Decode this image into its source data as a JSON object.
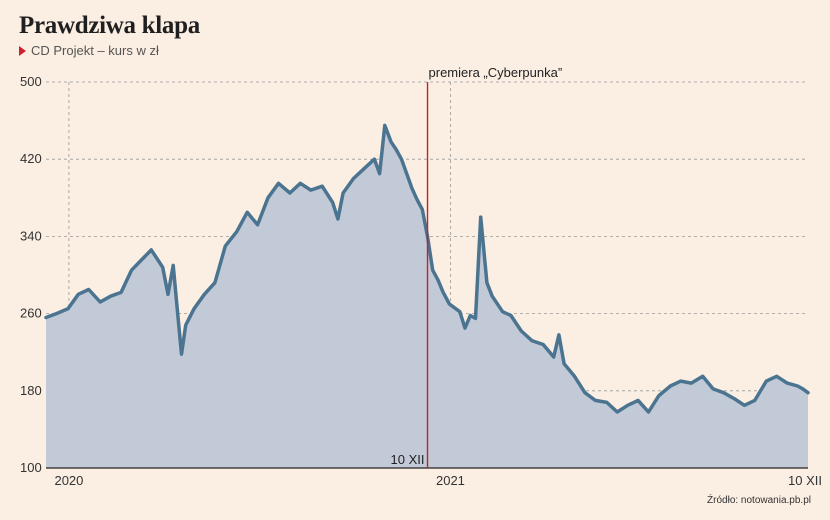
{
  "header": {
    "title": "Prawdziwa klapa",
    "subtitle": "CD Projekt – kurs w zł"
  },
  "source": "Źródło: notowania.pb.pl",
  "colors": {
    "background": "#fbeee3",
    "line": "#4b7490",
    "area": "#c2c9d7",
    "marker": "#c8202a",
    "marker_icon": "#d0202a"
  },
  "chart_data": {
    "type": "area",
    "ylim": [
      100,
      500
    ],
    "yticks": [
      100,
      180,
      260,
      340,
      420,
      500
    ],
    "x_date_range": [
      "2019-12-10",
      "2021-12-10"
    ],
    "xtick_labels": [
      {
        "date": "2020-01-01",
        "label": "2020"
      },
      {
        "date": "2021-01-01",
        "label": "2021"
      },
      {
        "date": "2021-12-10",
        "label": "10 XII"
      }
    ],
    "grid": "dashed",
    "annotation": {
      "date": "2020-12-10",
      "label_top": "premiera „Cyberpunka”",
      "label_bottom": "10 XII"
    },
    "series": [
      {
        "points": [
          [
            "2019-12-10",
            256
          ],
          [
            "2019-12-20",
            260
          ],
          [
            "2019-12-31",
            265
          ],
          [
            "2020-01-10",
            280
          ],
          [
            "2020-01-20",
            285
          ],
          [
            "2020-01-31",
            272
          ],
          [
            "2020-02-10",
            278
          ],
          [
            "2020-02-20",
            282
          ],
          [
            "2020-03-01",
            305
          ],
          [
            "2020-03-10",
            315
          ],
          [
            "2020-03-20",
            326
          ],
          [
            "2020-03-31",
            308
          ],
          [
            "2020-04-05",
            280
          ],
          [
            "2020-04-10",
            310
          ],
          [
            "2020-04-15",
            252
          ],
          [
            "2020-04-18",
            218
          ],
          [
            "2020-04-22",
            248
          ],
          [
            "2020-04-30",
            265
          ],
          [
            "2020-05-10",
            280
          ],
          [
            "2020-05-20",
            292
          ],
          [
            "2020-05-30",
            330
          ],
          [
            "2020-06-10",
            345
          ],
          [
            "2020-06-20",
            365
          ],
          [
            "2020-06-30",
            352
          ],
          [
            "2020-07-10",
            380
          ],
          [
            "2020-07-20",
            395
          ],
          [
            "2020-07-31",
            385
          ],
          [
            "2020-08-10",
            395
          ],
          [
            "2020-08-20",
            388
          ],
          [
            "2020-08-31",
            392
          ],
          [
            "2020-09-10",
            375
          ],
          [
            "2020-09-15",
            358
          ],
          [
            "2020-09-20",
            385
          ],
          [
            "2020-09-30",
            400
          ],
          [
            "2020-10-10",
            410
          ],
          [
            "2020-10-20",
            420
          ],
          [
            "2020-10-25",
            405
          ],
          [
            "2020-10-30",
            455
          ],
          [
            "2020-11-05",
            438
          ],
          [
            "2020-11-10",
            430
          ],
          [
            "2020-11-15",
            420
          ],
          [
            "2020-11-20",
            405
          ],
          [
            "2020-11-25",
            390
          ],
          [
            "2020-11-30",
            378
          ],
          [
            "2020-12-05",
            368
          ],
          [
            "2020-12-10",
            340
          ],
          [
            "2020-12-15",
            305
          ],
          [
            "2020-12-20",
            295
          ],
          [
            "2020-12-25",
            282
          ],
          [
            "2020-12-31",
            270
          ],
          [
            "2021-01-10",
            262
          ],
          [
            "2021-01-15",
            245
          ],
          [
            "2021-01-20",
            258
          ],
          [
            "2021-01-25",
            255
          ],
          [
            "2021-01-30",
            360
          ],
          [
            "2021-02-05",
            292
          ],
          [
            "2021-02-10",
            278
          ],
          [
            "2021-02-20",
            262
          ],
          [
            "2021-02-28",
            258
          ],
          [
            "2021-03-10",
            242
          ],
          [
            "2021-03-20",
            232
          ],
          [
            "2021-03-31",
            228
          ],
          [
            "2021-04-10",
            215
          ],
          [
            "2021-04-15",
            238
          ],
          [
            "2021-04-20",
            208
          ],
          [
            "2021-04-30",
            195
          ],
          [
            "2021-05-10",
            178
          ],
          [
            "2021-05-20",
            170
          ],
          [
            "2021-05-31",
            168
          ],
          [
            "2021-06-10",
            158
          ],
          [
            "2021-06-20",
            165
          ],
          [
            "2021-06-30",
            170
          ],
          [
            "2021-07-10",
            158
          ],
          [
            "2021-07-20",
            175
          ],
          [
            "2021-07-31",
            185
          ],
          [
            "2021-08-10",
            190
          ],
          [
            "2021-08-20",
            188
          ],
          [
            "2021-08-31",
            195
          ],
          [
            "2021-09-10",
            182
          ],
          [
            "2021-09-20",
            178
          ],
          [
            "2021-09-30",
            172
          ],
          [
            "2021-10-10",
            165
          ],
          [
            "2021-10-20",
            170
          ],
          [
            "2021-10-31",
            190
          ],
          [
            "2021-11-10",
            195
          ],
          [
            "2021-11-20",
            188
          ],
          [
            "2021-11-30",
            185
          ],
          [
            "2021-12-05",
            182
          ],
          [
            "2021-12-10",
            178
          ]
        ]
      }
    ]
  }
}
